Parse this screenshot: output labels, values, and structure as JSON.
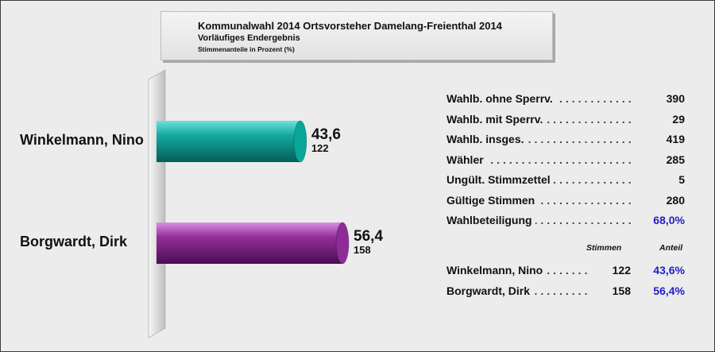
{
  "header": {
    "title": "Kommunalwahl 2014 Ortsvorsteher Damelang-Freienthal 2014",
    "subtitle": "Vorläufiges Endergebnis",
    "unit_note": "Stimmenanteile in Prozent (%)"
  },
  "chart_data": {
    "type": "bar",
    "orientation": "horizontal",
    "categories": [
      "Winkelmann, Nino",
      "Borgwardt, Dirk"
    ],
    "values": [
      43.6,
      56.4
    ],
    "value_labels": [
      "43,6",
      "56,4"
    ],
    "votes": [
      122,
      158
    ],
    "votes_labels": [
      "122",
      "158"
    ],
    "colors": [
      "#0aa59b",
      "#8c2c96"
    ],
    "xlim": [
      0,
      100
    ]
  },
  "stats": [
    {
      "label": "Wahlb. ohne Sperrv.",
      "value": "390"
    },
    {
      "label": "Wahlb. mit Sperrv.",
      "value": "29"
    },
    {
      "label": "Wahlb. insges.",
      "value": "419"
    },
    {
      "label": "Wähler",
      "value": "285"
    },
    {
      "label": "Ungült. Stimmzettel",
      "value": "5"
    },
    {
      "label": "Gültige Stimmen",
      "value": "280"
    },
    {
      "label": "Wahlbeteiligung",
      "value": "68,0%"
    }
  ],
  "results_table": {
    "col_votes": "Stimmen",
    "col_share": "Anteil",
    "rows": [
      {
        "name": "Winkelmann, Nino",
        "votes": "122",
        "share": "43,6%"
      },
      {
        "name": "Borgwardt, Dirk",
        "votes": "158",
        "share": "56,4%"
      }
    ]
  },
  "colors": {
    "accent_blue": "#1e1ec8",
    "background": "#ececec"
  }
}
